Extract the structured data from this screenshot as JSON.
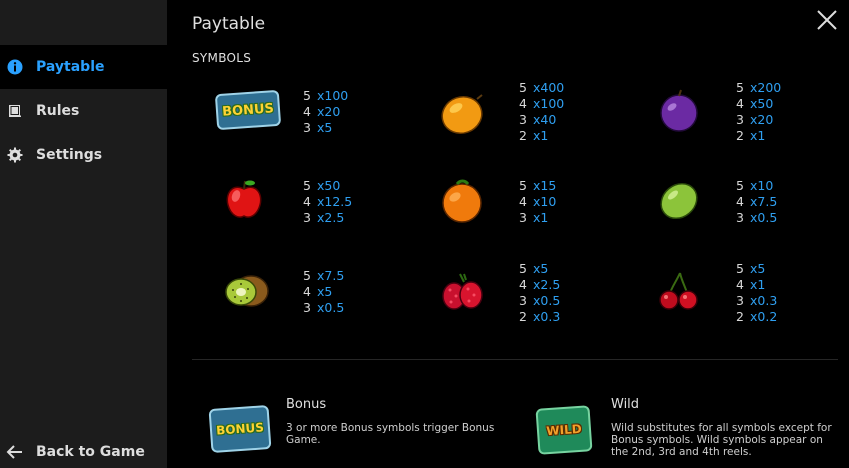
{
  "sidebar": {
    "items": [
      {
        "label": "Paytable",
        "icon": "info-icon",
        "active": true
      },
      {
        "label": "Rules",
        "icon": "book-icon",
        "active": false
      },
      {
        "label": "Settings",
        "icon": "gear-icon",
        "active": false
      }
    ],
    "back_label": "Back to Game"
  },
  "header": {
    "title": "Paytable"
  },
  "section": {
    "symbols_title": "SYMBOLS"
  },
  "symbols": [
    {
      "name": "Bonus",
      "icon": "bonus-symbol",
      "badge_text": "BONUS",
      "pays": [
        {
          "count": "5",
          "mult": "x100"
        },
        {
          "count": "4",
          "mult": "x20"
        },
        {
          "count": "3",
          "mult": "x5"
        }
      ]
    },
    {
      "name": "Orange",
      "icon": "orange-icon",
      "pays": [
        {
          "count": "5",
          "mult": "x400"
        },
        {
          "count": "4",
          "mult": "x100"
        },
        {
          "count": "3",
          "mult": "x40"
        },
        {
          "count": "2",
          "mult": "x1"
        }
      ]
    },
    {
      "name": "Plum",
      "icon": "plum-icon",
      "pays": [
        {
          "count": "5",
          "mult": "x200"
        },
        {
          "count": "4",
          "mult": "x50"
        },
        {
          "count": "3",
          "mult": "x20"
        },
        {
          "count": "2",
          "mult": "x1"
        }
      ]
    },
    {
      "name": "Apple",
      "icon": "apple-icon",
      "pays": [
        {
          "count": "5",
          "mult": "x50"
        },
        {
          "count": "4",
          "mult": "x12.5"
        },
        {
          "count": "3",
          "mult": "x2.5"
        }
      ]
    },
    {
      "name": "Tangerine",
      "icon": "tangerine-icon",
      "pays": [
        {
          "count": "5",
          "mult": "x15"
        },
        {
          "count": "4",
          "mult": "x10"
        },
        {
          "count": "3",
          "mult": "x1"
        }
      ]
    },
    {
      "name": "Lime",
      "icon": "lime-icon",
      "pays": [
        {
          "count": "5",
          "mult": "x10"
        },
        {
          "count": "4",
          "mult": "x7.5"
        },
        {
          "count": "3",
          "mult": "x0.5"
        }
      ]
    },
    {
      "name": "Kiwi",
      "icon": "kiwi-icon",
      "pays": [
        {
          "count": "5",
          "mult": "x7.5"
        },
        {
          "count": "4",
          "mult": "x5"
        },
        {
          "count": "3",
          "mult": "x0.5"
        }
      ]
    },
    {
      "name": "Raspberry",
      "icon": "raspberry-icon",
      "pays": [
        {
          "count": "5",
          "mult": "x5"
        },
        {
          "count": "4",
          "mult": "x2.5"
        },
        {
          "count": "3",
          "mult": "x0.5"
        },
        {
          "count": "2",
          "mult": "x0.3"
        }
      ]
    },
    {
      "name": "Cherry",
      "icon": "cherry-icon",
      "pays": [
        {
          "count": "5",
          "mult": "x5"
        },
        {
          "count": "4",
          "mult": "x1"
        },
        {
          "count": "3",
          "mult": "x0.3"
        },
        {
          "count": "2",
          "mult": "x0.2"
        }
      ]
    }
  ],
  "features": [
    {
      "name": "Bonus",
      "badge_text": "BONUS",
      "description": "3 or more Bonus symbols trigger Bonus Game."
    },
    {
      "name": "Wild",
      "badge_text": "WILD",
      "description": "Wild substitutes for all symbols except for Bonus symbols. Wild symbols appear on the 2nd, 3rd and 4th reels."
    }
  ],
  "colors": {
    "accent": "#2aa1ff",
    "multiplier": "#2f9ff0",
    "sidebar_bg": "#1c1c1c",
    "background": "#000000"
  }
}
